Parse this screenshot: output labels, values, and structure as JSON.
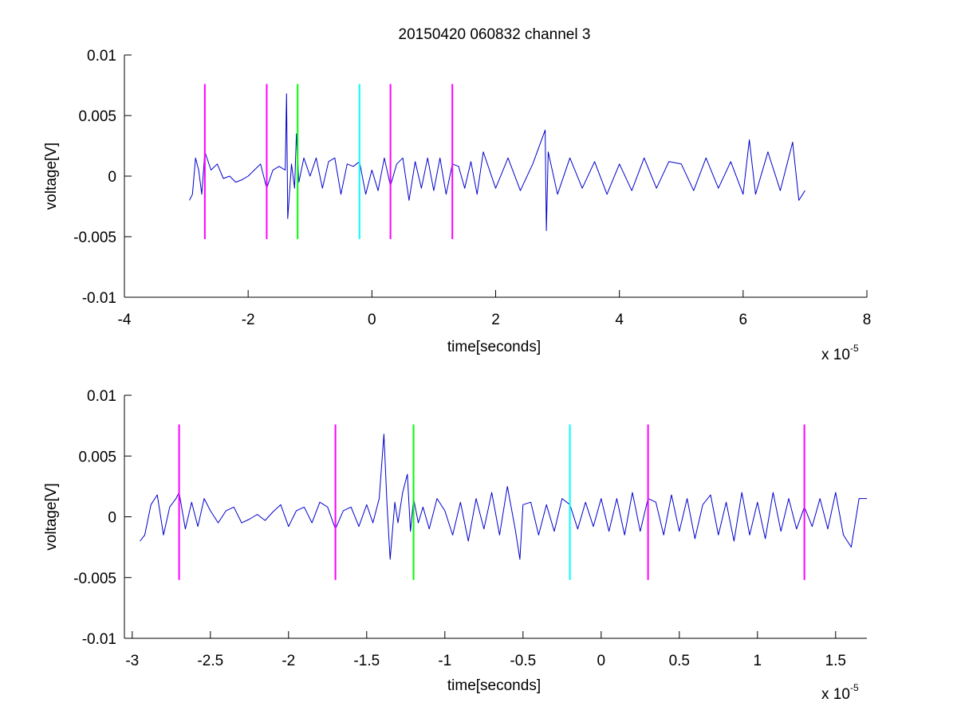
{
  "figure": {
    "title": "20150420 060832 channel 3"
  },
  "chart_data": [
    {
      "type": "line",
      "title": "20150420 060832 channel 3",
      "xlabel": "time[seconds]",
      "ylabel": "voltage[V]",
      "x_exponent_label": "x 10",
      "x_exponent_power": "-5",
      "xlim": [
        -4,
        8
      ],
      "ylim": [
        -0.01,
        0.01
      ],
      "xticks": [
        -4,
        -2,
        0,
        2,
        4,
        6,
        8
      ],
      "xtick_labels": [
        "-4",
        "-2",
        "0",
        "2",
        "4",
        "6",
        "8"
      ],
      "yticks": [
        -0.01,
        -0.005,
        0,
        0.005,
        0.01
      ],
      "ytick_labels": [
        "-0.01",
        "-0.005",
        "0",
        "0.005",
        "0.01"
      ],
      "grid": false,
      "series": [
        {
          "color": "#0000cc",
          "x": [
            -2.95,
            -2.9,
            -2.85,
            -2.8,
            -2.75,
            -2.7,
            -2.6,
            -2.5,
            -2.4,
            -2.3,
            -2.2,
            -2.1,
            -2.0,
            -1.9,
            -1.8,
            -1.7,
            -1.6,
            -1.5,
            -1.4,
            -1.38,
            -1.36,
            -1.3,
            -1.25,
            -1.22,
            -1.18,
            -1.1,
            -1.0,
            -0.9,
            -0.8,
            -0.7,
            -0.6,
            -0.5,
            -0.4,
            -0.3,
            -0.2,
            -0.1,
            0.0,
            0.1,
            0.2,
            0.3,
            0.4,
            0.5,
            0.6,
            0.7,
            0.8,
            0.9,
            1.0,
            1.1,
            1.2,
            1.3,
            1.4,
            1.5,
            1.6,
            1.7,
            1.8,
            2.0,
            2.2,
            2.4,
            2.6,
            2.8,
            2.82,
            2.85,
            3.0,
            3.2,
            3.4,
            3.6,
            3.8,
            4.0,
            4.2,
            4.4,
            4.6,
            4.8,
            5.0,
            5.2,
            5.4,
            5.6,
            5.8,
            6.0,
            6.1,
            6.2,
            6.4,
            6.6,
            6.8,
            6.9,
            7.0
          ],
          "y": [
            -0.002,
            -0.0015,
            0.0015,
            0.0005,
            -0.0015,
            0.002,
            0.0005,
            0.001,
            -0.0002,
            0.0,
            -0.0005,
            -0.0003,
            0.0,
            0.0005,
            0.001,
            -0.001,
            0.0005,
            0.0008,
            0.0005,
            0.0068,
            -0.0035,
            0.001,
            -0.001,
            0.0035,
            -0.0005,
            0.0015,
            0.0,
            0.0015,
            -0.001,
            0.0012,
            0.0015,
            -0.0015,
            0.001,
            0.0008,
            0.0012,
            -0.0015,
            0.0005,
            -0.0012,
            0.0015,
            -0.0008,
            0.001,
            0.0015,
            -0.002,
            0.0012,
            -0.001,
            0.0015,
            -0.0012,
            0.0015,
            -0.0015,
            0.001,
            0.0008,
            -0.001,
            0.0012,
            -0.0015,
            0.002,
            -0.001,
            0.0015,
            -0.0012,
            0.001,
            0.0038,
            -0.0045,
            0.002,
            -0.0015,
            0.0015,
            -0.001,
            0.0012,
            -0.0015,
            0.001,
            -0.0012,
            0.0015,
            -0.001,
            0.0012,
            0.001,
            -0.0012,
            0.0015,
            -0.001,
            0.0012,
            -0.0015,
            0.003,
            -0.0015,
            0.002,
            -0.0012,
            0.0028,
            -0.002,
            -0.0012
          ]
        }
      ],
      "markers": [
        {
          "x": -2.7,
          "y_range": [
            -0.0052,
            0.0076
          ],
          "color": "#ff00ff"
        },
        {
          "x": -1.7,
          "y_range": [
            -0.0052,
            0.0076
          ],
          "color": "#ff00ff"
        },
        {
          "x": -1.2,
          "y_range": [
            -0.0052,
            0.0076
          ],
          "color": "#00ff00"
        },
        {
          "x": -0.2,
          "y_range": [
            -0.0052,
            0.0076
          ],
          "color": "#00ffff"
        },
        {
          "x": 0.3,
          "y_range": [
            -0.0052,
            0.0076
          ],
          "color": "#ff00ff"
        },
        {
          "x": 1.3,
          "y_range": [
            -0.0052,
            0.0076
          ],
          "color": "#ff00ff"
        }
      ]
    },
    {
      "type": "line",
      "title": "",
      "xlabel": "time[seconds]",
      "ylabel": "voltage[V]",
      "x_exponent_label": "x 10",
      "x_exponent_power": "-5",
      "xlim": [
        -3.05,
        1.7
      ],
      "ylim": [
        -0.01,
        0.01
      ],
      "xticks": [
        -3,
        -2.5,
        -2,
        -1.5,
        -1,
        -0.5,
        0,
        0.5,
        1,
        1.5
      ],
      "xtick_labels": [
        "-3",
        "-2.5",
        "-2",
        "-1.5",
        "-1",
        "-0.5",
        "0",
        "0.5",
        "1",
        "1.5"
      ],
      "yticks": [
        -0.01,
        -0.005,
        0,
        0.005,
        0.01
      ],
      "ytick_labels": [
        "-0.01",
        "-0.005",
        "0",
        "0.005",
        "0.01"
      ],
      "grid": false,
      "series": [
        {
          "color": "#0000cc",
          "x": [
            -2.95,
            -2.92,
            -2.88,
            -2.84,
            -2.8,
            -2.76,
            -2.72,
            -2.7,
            -2.66,
            -2.62,
            -2.58,
            -2.54,
            -2.5,
            -2.45,
            -2.4,
            -2.35,
            -2.3,
            -2.25,
            -2.2,
            -2.15,
            -2.1,
            -2.05,
            -2.0,
            -1.95,
            -1.9,
            -1.85,
            -1.8,
            -1.75,
            -1.7,
            -1.65,
            -1.6,
            -1.55,
            -1.5,
            -1.46,
            -1.42,
            -1.39,
            -1.37,
            -1.35,
            -1.32,
            -1.3,
            -1.27,
            -1.24,
            -1.22,
            -1.2,
            -1.17,
            -1.14,
            -1.1,
            -1.05,
            -1.0,
            -0.95,
            -0.9,
            -0.85,
            -0.8,
            -0.75,
            -0.7,
            -0.65,
            -0.6,
            -0.55,
            -0.52,
            -0.5,
            -0.45,
            -0.4,
            -0.35,
            -0.3,
            -0.25,
            -0.2,
            -0.15,
            -0.1,
            -0.05,
            0.0,
            0.05,
            0.1,
            0.15,
            0.2,
            0.25,
            0.3,
            0.35,
            0.4,
            0.45,
            0.5,
            0.55,
            0.6,
            0.65,
            0.7,
            0.75,
            0.8,
            0.85,
            0.9,
            0.95,
            1.0,
            1.05,
            1.1,
            1.15,
            1.2,
            1.25,
            1.3,
            1.35,
            1.4,
            1.45,
            1.5,
            1.55,
            1.6,
            1.65,
            1.7
          ],
          "y": [
            -0.002,
            -0.0015,
            0.001,
            0.0018,
            -0.0015,
            0.0008,
            0.0015,
            0.002,
            -0.001,
            0.0012,
            -0.0008,
            0.0015,
            0.0005,
            -0.0005,
            0.0005,
            0.0008,
            -0.0005,
            -0.0002,
            0.0002,
            -0.0003,
            0.0004,
            0.001,
            -0.0008,
            0.0005,
            0.0008,
            -0.0005,
            0.0012,
            0.0008,
            -0.001,
            0.0005,
            0.0008,
            -0.0008,
            0.001,
            -0.0005,
            0.0015,
            0.0068,
            0.001,
            -0.0035,
            0.0012,
            -0.0005,
            0.002,
            0.0035,
            -0.0012,
            0.0015,
            -0.0005,
            0.0008,
            -0.001,
            0.0015,
            0.0005,
            -0.0015,
            0.0012,
            -0.002,
            0.0015,
            -0.001,
            0.002,
            -0.0015,
            0.0025,
            -0.001,
            -0.0035,
            0.001,
            0.0012,
            -0.0015,
            0.001,
            -0.0012,
            0.0015,
            0.001,
            -0.001,
            0.0012,
            -0.0008,
            0.0015,
            -0.0012,
            0.0015,
            -0.0015,
            0.002,
            -0.0012,
            0.0015,
            0.0012,
            -0.0015,
            0.0018,
            -0.0012,
            0.0015,
            -0.0018,
            0.001,
            0.0018,
            -0.0015,
            0.0012,
            -0.002,
            0.002,
            -0.0015,
            0.0012,
            -0.0018,
            0.002,
            -0.0012,
            0.0015,
            -0.001,
            0.0008,
            -0.0008,
            0.0015,
            -0.001,
            0.002,
            -0.0015,
            -0.0025,
            0.0015,
            0.0015
          ]
        }
      ],
      "markers": [
        {
          "x": -2.7,
          "y_range": [
            -0.0052,
            0.0076
          ],
          "color": "#ff00ff"
        },
        {
          "x": -1.7,
          "y_range": [
            -0.0052,
            0.0076
          ],
          "color": "#ff00ff"
        },
        {
          "x": -1.2,
          "y_range": [
            -0.0052,
            0.0076
          ],
          "color": "#00ff00"
        },
        {
          "x": -0.2,
          "y_range": [
            -0.0052,
            0.0076
          ],
          "color": "#00ffff"
        },
        {
          "x": 0.3,
          "y_range": [
            -0.0052,
            0.0076
          ],
          "color": "#ff00ff"
        },
        {
          "x": 1.3,
          "y_range": [
            -0.0052,
            0.0076
          ],
          "color": "#ff00ff"
        }
      ]
    }
  ]
}
